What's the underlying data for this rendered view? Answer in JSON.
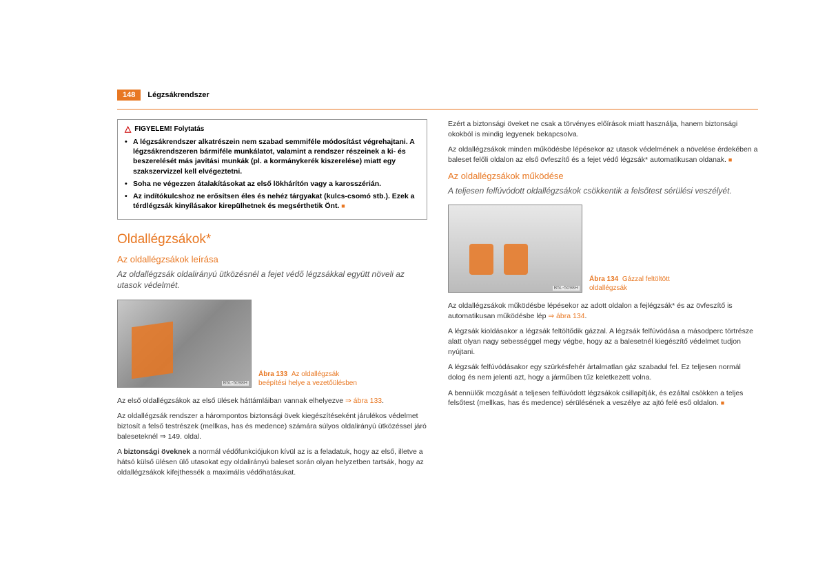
{
  "page": {
    "number": "148",
    "chapter": "Légzsákrendszer"
  },
  "warning": {
    "title": "FIGYELEM! Folytatás",
    "items": [
      "A légzsákrendszer alkatrészein nem szabad semmiféle módosítást végrehajtani. A légzsákrendszeren bármiféle munkálatot, valamint a rendszer részeinek a ki- és beszerelését más javítási munkák (pl. a kormánykerék kiszerelése) miatt egy szakszervizzel kell elvégeztetni.",
      "Soha ne végezzen átalakításokat az első lökhárítón vagy a karosszérián.",
      "Az indítókulcshoz ne erősítsen éles és nehéz tárgyakat (kulcs-csomó stb.). Ezek a térdlégzsák kinyílásakor kirepülhetnek és megsérthetik Önt."
    ]
  },
  "section": {
    "title": "Oldallégzsákok*"
  },
  "left": {
    "subtitle": "Az oldallégzsákok leírása",
    "intro": "Az oldallégzsák oldalirányú ütközésnél a fejet védő légzsákkal együtt növeli az utasok védelmét.",
    "fig": {
      "code": "B5L-5098H",
      "num": "Ábra 133",
      "caption": "Az oldallégzsák beépítési helye a vezetőülésben"
    },
    "p1_a": "Az első oldallégzsákok az első ülések háttámláiban vannak elhelyezve ",
    "p1_ref": "⇒ ábra 133",
    "p1_b": ".",
    "p2": "Az oldallégzsák rendszer a hárompontos biztonsági övek kiegészítéseként járulékos védelmet biztosít a felső testrészek (mellkas, has és medence) számára súlyos oldalirányú ütközéssel járó baleseteknél ⇒ 149. oldal.",
    "p3_a": "A ",
    "p3_bold": "biztonsági öveknek",
    "p3_b": " a normál védőfunkciójukon kívül az is a feladatuk, hogy az első, illetve a hátsó külső ülésen ülő utasokat egy oldalirányú baleset során olyan helyzetben tartsák, hogy az oldallégzsákok kifejthessék a maximális védőhatásukat."
  },
  "right": {
    "p1": "Ezért a biztonsági öveket ne csak a törvényes előírások miatt használja, hanem biztonsági okokból is mindig legyenek bekapcsolva.",
    "p2": "Az oldallégzsákok minden működésbe lépésekor az utasok védelmének a növelése érdekében a baleset felőli oldalon az első övfeszítő és a fejet védő légzsák* automatikusan oldanak.",
    "subtitle": "Az oldallégzsákok működése",
    "intro": "A teljesen felfúvódott oldallégzsákok csökkentik a felsőtest sérülési veszélyét.",
    "fig": {
      "code": "B5L-5098H",
      "num": "Ábra 134",
      "caption": "Gázzal feltöltött oldallégzsák"
    },
    "p3_a": "Az oldallégzsákok működésbe lépésekor az adott oldalon a fejlégzsák* és az övfeszítő is automatikusan működésbe lép ",
    "p3_ref": "⇒ ábra 134",
    "p3_b": ".",
    "p4": "A légzsák kioldásakor a légzsák feltöltődik gázzal. A légzsák felfúvódása a másodperc törtrésze alatt olyan nagy sebességgel megy végbe, hogy az a balesetnél kiegészítő védelmet tudjon nyújtani.",
    "p5": "A légzsák felfúvódásakor egy szürkésfehér ártalmatlan gáz szabadul fel. Ez teljesen normál dolog és nem jelenti azt, hogy a járműben tűz keletkezett volna.",
    "p6": "A bennülők mozgását a teljesen felfúvódott légzsákok csillapítják, és ezáltal csökken a teljes felsőtest (mellkas, has és medence) sérülésének a veszélye az ajtó felé eső oldalon."
  }
}
